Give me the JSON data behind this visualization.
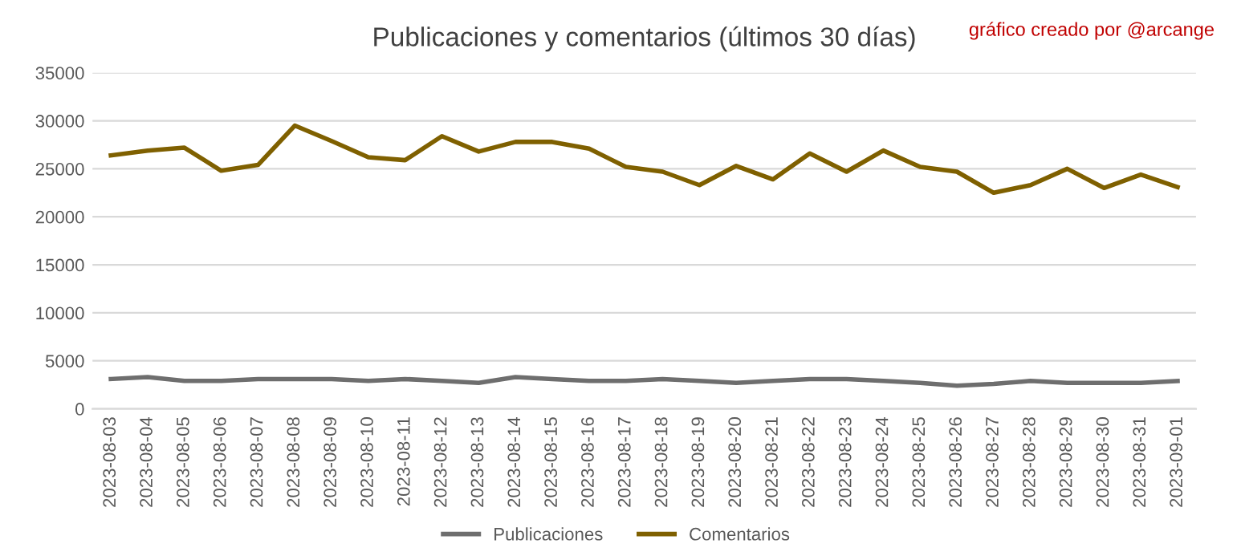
{
  "chart_data": {
    "type": "line",
    "title": "Publicaciones y comentarios (últimos 30 días)",
    "annotations": [
      "gráfico creado por @arcange"
    ],
    "categories": [
      "2023-08-03",
      "2023-08-04",
      "2023-08-05",
      "2023-08-06",
      "2023-08-07",
      "2023-08-08",
      "2023-08-09",
      "2023-08-10",
      "2023-08-11",
      "2023-08-12",
      "2023-08-13",
      "2023-08-14",
      "2023-08-15",
      "2023-08-16",
      "2023-08-17",
      "2023-08-18",
      "2023-08-19",
      "2023-08-20",
      "2023-08-21",
      "2023-08-22",
      "2023-08-23",
      "2023-08-24",
      "2023-08-25",
      "2023-08-26",
      "2023-08-27",
      "2023-08-28",
      "2023-08-29",
      "2023-08-30",
      "2023-08-31",
      "2023-09-01"
    ],
    "series": [
      {
        "name": "Publicaciones",
        "color": "#6e6e6e",
        "values": [
          3100,
          3300,
          2900,
          2900,
          3100,
          3100,
          3100,
          2900,
          3100,
          2900,
          2700,
          3300,
          3100,
          2900,
          2900,
          3100,
          2900,
          2700,
          2900,
          3100,
          3100,
          2900,
          2700,
          2400,
          2600,
          2900,
          2700,
          2700,
          2700,
          2900
        ]
      },
      {
        "name": "Comentarios",
        "color": "#7f6000",
        "values": [
          26400,
          26900,
          27200,
          24800,
          25400,
          29500,
          27900,
          26200,
          25900,
          28400,
          26800,
          27800,
          27800,
          27100,
          25200,
          24700,
          23300,
          25300,
          23900,
          26600,
          24700,
          26900,
          25200,
          24700,
          22500,
          23300,
          25000,
          23000,
          24400,
          23100
        ]
      }
    ],
    "ylim": [
      0,
      35000
    ],
    "yticks": [
      0,
      5000,
      10000,
      15000,
      20000,
      25000,
      30000,
      35000
    ],
    "grid": "y",
    "legend": "bottom",
    "marker": "none",
    "line_style": "solid"
  }
}
